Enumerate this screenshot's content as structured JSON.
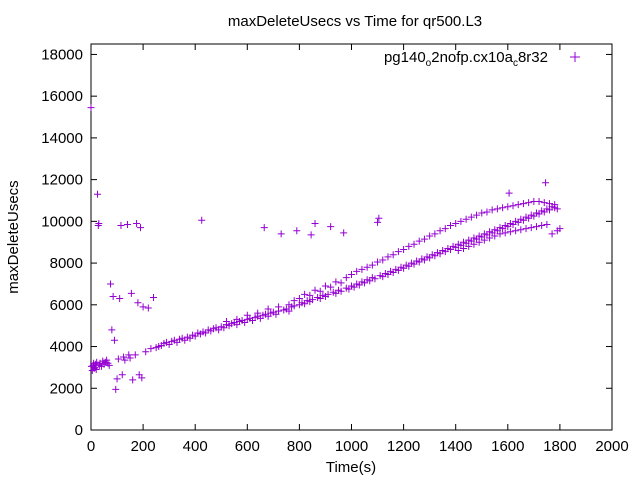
{
  "chart_data": {
    "type": "scatter",
    "title": "maxDeleteUsecs vs Time for qr500.L3",
    "xlabel": "Time(s)",
    "ylabel": "maxDeleteUsecs",
    "xlim": [
      0,
      2000
    ],
    "ylim": [
      0,
      18500
    ],
    "xticks": [
      0,
      200,
      400,
      600,
      800,
      1000,
      1200,
      1400,
      1600,
      1800,
      2000
    ],
    "yticks": [
      0,
      2000,
      4000,
      6000,
      8000,
      10000,
      12000,
      14000,
      16000,
      18000
    ],
    "grid": false,
    "legend_position": "top-right",
    "marker": "plus",
    "series": [
      {
        "legend_parts": {
          "prefix": "pg140",
          "sub1": "o",
          "middle": "2nofp.cx10a",
          "sub2": "c",
          "suffix": "8r32"
        },
        "color": "#9400d3",
        "points": [
          [
            0,
            15450
          ],
          [
            2,
            3050
          ],
          [
            5,
            2850
          ],
          [
            8,
            3100
          ],
          [
            10,
            3200
          ],
          [
            12,
            2950
          ],
          [
            15,
            3000
          ],
          [
            18,
            3150
          ],
          [
            20,
            2900
          ],
          [
            22,
            3250
          ],
          [
            25,
            11300
          ],
          [
            28,
            9800
          ],
          [
            30,
            9900
          ],
          [
            32,
            3100
          ],
          [
            35,
            3200
          ],
          [
            40,
            3050
          ],
          [
            45,
            3300
          ],
          [
            50,
            3150
          ],
          [
            55,
            3250
          ],
          [
            60,
            3350
          ],
          [
            65,
            3200
          ],
          [
            70,
            3100
          ],
          [
            75,
            7000
          ],
          [
            80,
            4800
          ],
          [
            85,
            6400
          ],
          [
            90,
            4300
          ],
          [
            95,
            1950
          ],
          [
            100,
            2450
          ],
          [
            105,
            3400
          ],
          [
            110,
            6300
          ],
          [
            115,
            9800
          ],
          [
            120,
            2650
          ],
          [
            125,
            3500
          ],
          [
            130,
            3350
          ],
          [
            140,
            9850
          ],
          [
            145,
            3600
          ],
          [
            150,
            3450
          ],
          [
            155,
            6550
          ],
          [
            160,
            2400
          ],
          [
            170,
            3600
          ],
          [
            175,
            9900
          ],
          [
            180,
            6100
          ],
          [
            185,
            2650
          ],
          [
            190,
            9700
          ],
          [
            195,
            2500
          ],
          [
            200,
            5900
          ],
          [
            210,
            3750
          ],
          [
            220,
            5850
          ],
          [
            230,
            3900
          ],
          [
            240,
            6350
          ],
          [
            250,
            3950
          ],
          [
            260,
            4000
          ],
          [
            270,
            4050
          ],
          [
            280,
            4150
          ],
          [
            290,
            4200
          ],
          [
            300,
            4100
          ],
          [
            310,
            4250
          ],
          [
            320,
            4300
          ],
          [
            330,
            4200
          ],
          [
            340,
            4350
          ],
          [
            350,
            4400
          ],
          [
            360,
            4300
          ],
          [
            370,
            4450
          ],
          [
            380,
            4400
          ],
          [
            390,
            4550
          ],
          [
            400,
            4500
          ],
          [
            410,
            4650
          ],
          [
            420,
            4600
          ],
          [
            425,
            10050
          ],
          [
            430,
            4700
          ],
          [
            440,
            4650
          ],
          [
            450,
            4800
          ],
          [
            460,
            4750
          ],
          [
            470,
            4850
          ],
          [
            480,
            4900
          ],
          [
            490,
            4800
          ],
          [
            500,
            4950
          ],
          [
            510,
            4900
          ],
          [
            520,
            5050
          ],
          [
            530,
            5000
          ],
          [
            540,
            5100
          ],
          [
            550,
            5150
          ],
          [
            560,
            5050
          ],
          [
            570,
            5200
          ],
          [
            580,
            5250
          ],
          [
            590,
            5150
          ],
          [
            600,
            5300
          ],
          [
            610,
            5350
          ],
          [
            620,
            5250
          ],
          [
            630,
            5400
          ],
          [
            640,
            5450
          ],
          [
            650,
            5350
          ],
          [
            660,
            5500
          ],
          [
            665,
            9700
          ],
          [
            670,
            5550
          ],
          [
            680,
            5450
          ],
          [
            690,
            5600
          ],
          [
            700,
            5650
          ],
          [
            710,
            5550
          ],
          [
            720,
            5700
          ],
          [
            730,
            9400
          ],
          [
            740,
            5750
          ],
          [
            750,
            5800
          ],
          [
            760,
            5700
          ],
          [
            770,
            5900
          ],
          [
            780,
            5950
          ],
          [
            790,
            9550
          ],
          [
            800,
            6000
          ],
          [
            810,
            6100
          ],
          [
            820,
            6050
          ],
          [
            830,
            6200
          ],
          [
            840,
            6150
          ],
          [
            845,
            9350
          ],
          [
            850,
            6250
          ],
          [
            860,
            9900
          ],
          [
            870,
            6350
          ],
          [
            880,
            6300
          ],
          [
            890,
            6450
          ],
          [
            900,
            6400
          ],
          [
            910,
            6500
          ],
          [
            920,
            9750
          ],
          [
            930,
            6600
          ],
          [
            940,
            6550
          ],
          [
            950,
            6700
          ],
          [
            960,
            6650
          ],
          [
            970,
            9450
          ],
          [
            980,
            6800
          ],
          [
            990,
            6750
          ],
          [
            1000,
            6900
          ],
          [
            1010,
            6850
          ],
          [
            1020,
            7000
          ],
          [
            1030,
            6950
          ],
          [
            1040,
            7100
          ],
          [
            1050,
            7050
          ],
          [
            1060,
            7200
          ],
          [
            1070,
            7150
          ],
          [
            1080,
            7300
          ],
          [
            1090,
            7250
          ],
          [
            1100,
            9950
          ],
          [
            1105,
            10150
          ],
          [
            1110,
            7400
          ],
          [
            1120,
            7350
          ],
          [
            1130,
            7500
          ],
          [
            1140,
            7450
          ],
          [
            1150,
            7600
          ],
          [
            1160,
            7550
          ],
          [
            1170,
            7700
          ],
          [
            1180,
            7650
          ],
          [
            1190,
            7800
          ],
          [
            1200,
            7750
          ],
          [
            1210,
            7900
          ],
          [
            1220,
            7850
          ],
          [
            1230,
            8000
          ],
          [
            1240,
            7950
          ],
          [
            1250,
            8100
          ],
          [
            1260,
            8050
          ],
          [
            1270,
            8200
          ],
          [
            1280,
            8150
          ],
          [
            1290,
            8300
          ],
          [
            1300,
            8250
          ],
          [
            1310,
            8400
          ],
          [
            1320,
            8350
          ],
          [
            1330,
            8500
          ],
          [
            1340,
            8450
          ],
          [
            1350,
            8600
          ],
          [
            1360,
            8550
          ],
          [
            1370,
            8700
          ],
          [
            1380,
            8650
          ],
          [
            1390,
            8800
          ],
          [
            1400,
            8750
          ],
          [
            1410,
            8900
          ],
          [
            1420,
            8850
          ],
          [
            1430,
            9000
          ],
          [
            1440,
            8950
          ],
          [
            1450,
            9100
          ],
          [
            1460,
            9050
          ],
          [
            1470,
            9200
          ],
          [
            1480,
            9150
          ],
          [
            1490,
            9300
          ],
          [
            1500,
            9250
          ],
          [
            1510,
            9400
          ],
          [
            1520,
            9350
          ],
          [
            1530,
            9500
          ],
          [
            1540,
            9450
          ],
          [
            1550,
            9600
          ],
          [
            1560,
            9550
          ],
          [
            1570,
            9700
          ],
          [
            1580,
            9650
          ],
          [
            1590,
            9800
          ],
          [
            1600,
            9750
          ],
          [
            1605,
            11350
          ],
          [
            1610,
            9900
          ],
          [
            1620,
            9850
          ],
          [
            1630,
            10000
          ],
          [
            1640,
            9950
          ],
          [
            1650,
            10100
          ],
          [
            1660,
            10050
          ],
          [
            1670,
            10200
          ],
          [
            1680,
            10150
          ],
          [
            1690,
            10300
          ],
          [
            1700,
            10250
          ],
          [
            1710,
            10400
          ],
          [
            1720,
            10350
          ],
          [
            1730,
            10500
          ],
          [
            1740,
            10450
          ],
          [
            1745,
            11850
          ],
          [
            1750,
            10600
          ],
          [
            1760,
            10550
          ],
          [
            1770,
            10700
          ],
          [
            1780,
            10650
          ],
          [
            1790,
            10600
          ],
          [
            820,
            6500
          ],
          [
            860,
            6700
          ],
          [
            900,
            6900
          ],
          [
            940,
            7100
          ],
          [
            980,
            7300
          ],
          [
            1000,
            7450
          ],
          [
            1020,
            7600
          ],
          [
            1040,
            7700
          ],
          [
            1060,
            7800
          ],
          [
            1080,
            7900
          ],
          [
            1100,
            8050
          ],
          [
            1120,
            8150
          ],
          [
            1140,
            8300
          ],
          [
            1160,
            8400
          ],
          [
            1180,
            8550
          ],
          [
            1200,
            8650
          ],
          [
            1220,
            8800
          ],
          [
            1240,
            8900
          ],
          [
            1260,
            9050
          ],
          [
            1280,
            9150
          ],
          [
            1300,
            9300
          ],
          [
            1320,
            9400
          ],
          [
            1340,
            9550
          ],
          [
            1360,
            9650
          ],
          [
            1380,
            9800
          ],
          [
            1400,
            9900
          ],
          [
            1420,
            10000
          ],
          [
            1440,
            10100
          ],
          [
            1460,
            10200
          ],
          [
            1480,
            10300
          ],
          [
            1500,
            10400
          ],
          [
            1520,
            10450
          ],
          [
            1540,
            10550
          ],
          [
            1560,
            10600
          ],
          [
            1580,
            10650
          ],
          [
            1600,
            10700
          ],
          [
            1620,
            10750
          ],
          [
            1640,
            10800
          ],
          [
            1660,
            10850
          ],
          [
            1680,
            10900
          ],
          [
            1700,
            10950
          ],
          [
            1720,
            10950
          ],
          [
            1740,
            10900
          ],
          [
            1760,
            10850
          ],
          [
            1780,
            10800
          ],
          [
            1410,
            8600
          ],
          [
            1430,
            8700
          ],
          [
            1450,
            8800
          ],
          [
            1470,
            8900
          ],
          [
            1490,
            9000
          ],
          [
            1510,
            9100
          ],
          [
            1530,
            9200
          ],
          [
            1550,
            9300
          ],
          [
            1570,
            9400
          ],
          [
            1590,
            9450
          ],
          [
            1610,
            9500
          ],
          [
            1630,
            9550
          ],
          [
            1650,
            9600
          ],
          [
            1670,
            9650
          ],
          [
            1690,
            9700
          ],
          [
            1710,
            9750
          ],
          [
            1730,
            9800
          ],
          [
            1750,
            9850
          ],
          [
            1770,
            9400
          ],
          [
            1790,
            9550
          ],
          [
            1800,
            9650
          ],
          [
            520,
            5200
          ],
          [
            560,
            5300
          ],
          [
            600,
            5500
          ],
          [
            640,
            5600
          ],
          [
            680,
            5800
          ],
          [
            720,
            5900
          ],
          [
            760,
            6000
          ],
          [
            780,
            6200
          ],
          [
            800,
            6300
          ],
          [
            840,
            6450
          ],
          [
            880,
            6650
          ],
          [
            920,
            6850
          ],
          [
            960,
            7050
          ]
        ]
      }
    ]
  }
}
